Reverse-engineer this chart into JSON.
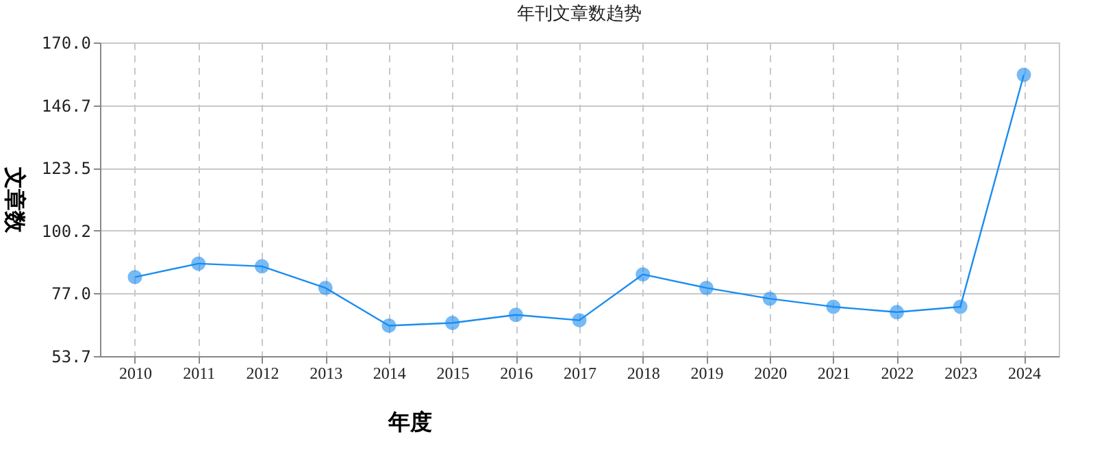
{
  "chart_data": {
    "type": "line",
    "title": "年刊文章数趋势",
    "xlabel": "年度",
    "ylabel": "文章数",
    "categories": [
      "2010",
      "2011",
      "2012",
      "2013",
      "2014",
      "2015",
      "2016",
      "2017",
      "2018",
      "2019",
      "2020",
      "2021",
      "2022",
      "2023",
      "2024"
    ],
    "series": [
      {
        "color": "#1a8cf0",
        "values": [
          83,
          88,
          87,
          79,
          65,
          66,
          69,
          67,
          84,
          79,
          75,
          72,
          70,
          72,
          158
        ]
      }
    ],
    "ylim": [
      53.7,
      170.0
    ],
    "yticks": [
      {
        "value": 53.7,
        "label": "53.7"
      },
      {
        "value": 77.0,
        "label": "77.0"
      },
      {
        "value": 100.2,
        "label": "100.2"
      },
      {
        "value": 123.5,
        "label": "123.5"
      },
      {
        "value": 146.7,
        "label": "146.7"
      },
      {
        "value": 170.0,
        "label": "170.0"
      }
    ],
    "grid": true,
    "marker": "circle",
    "line_style": "solid"
  }
}
